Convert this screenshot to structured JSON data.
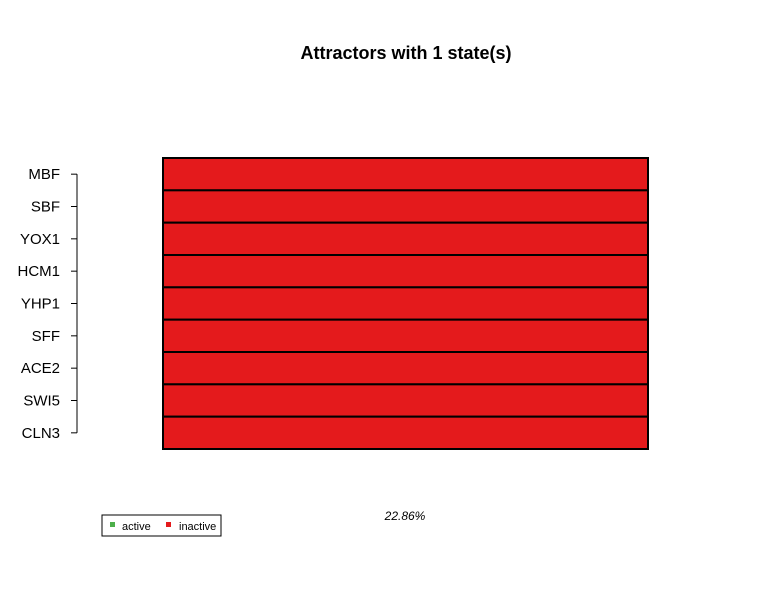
{
  "chart_data": {
    "type": "heatmap",
    "title": "Attractors with 1 state(s)",
    "genes": [
      "MBF",
      "SBF",
      "YOX1",
      "HCM1",
      "YHP1",
      "SFF",
      "ACE2",
      "SWI5",
      "CLN3"
    ],
    "states": [
      {
        "values": [
          0,
          0,
          0,
          0,
          0,
          0,
          0,
          0,
          0
        ],
        "basin_label": "22.86%"
      }
    ],
    "legend": {
      "placement": "bottom-left",
      "items": [
        {
          "label": "active",
          "color": "#4daf4a"
        },
        {
          "label": "inactive",
          "color": "#e41a1c"
        }
      ]
    },
    "colors": {
      "active": "#4daf4a",
      "inactive": "#e41a1c"
    }
  }
}
